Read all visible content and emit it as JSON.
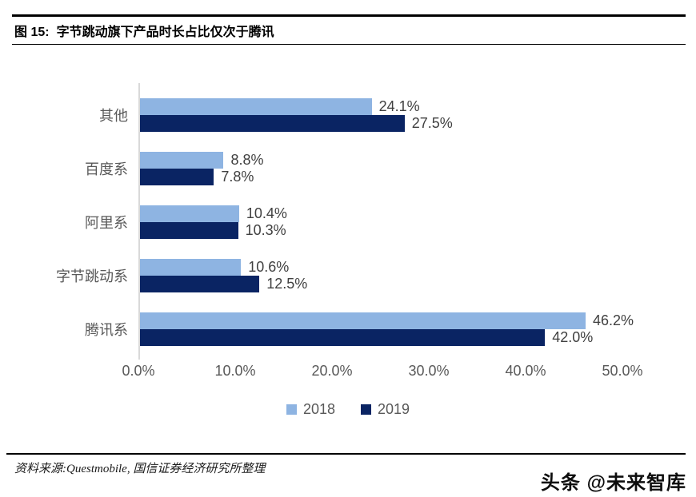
{
  "header": {
    "figure_no": "图 15:",
    "title": "字节跳动旗下产品时长占比仅次于腾讯"
  },
  "chart_data": {
    "type": "bar",
    "orientation": "horizontal",
    "title": "字节跳动旗下产品时长占比仅次于腾讯",
    "categories": [
      "其他",
      "百度系",
      "阿里系",
      "字节跳动系",
      "腾讯系"
    ],
    "series": [
      {
        "name": "2018",
        "color": "#8EB4E2",
        "values": [
          24.1,
          8.8,
          10.4,
          10.6,
          46.2
        ],
        "labels": [
          "24.1%",
          "8.8%",
          "10.4%",
          "10.6%",
          "46.2%"
        ]
      },
      {
        "name": "2019",
        "color": "#0A2463",
        "values": [
          27.5,
          7.8,
          10.3,
          12.5,
          42.0
        ],
        "labels": [
          "27.5%",
          "7.8%",
          "10.3%",
          "12.5%",
          "42.0%"
        ]
      }
    ],
    "xlim": [
      0,
      50
    ],
    "x_ticks": [
      "0.0%",
      "10.0%",
      "20.0%",
      "30.0%",
      "40.0%",
      "50.0%"
    ],
    "legend": [
      "2018",
      "2019"
    ],
    "legend_position": "bottom",
    "grid": false,
    "axis_color": "#d9d9d9",
    "value_label_color": "#404040",
    "tick_label_color": "#595959"
  },
  "footer": {
    "source": "资料来源:Questmobile, 国信证券经济研究所整理",
    "watermark": "头条 @未来智库"
  }
}
